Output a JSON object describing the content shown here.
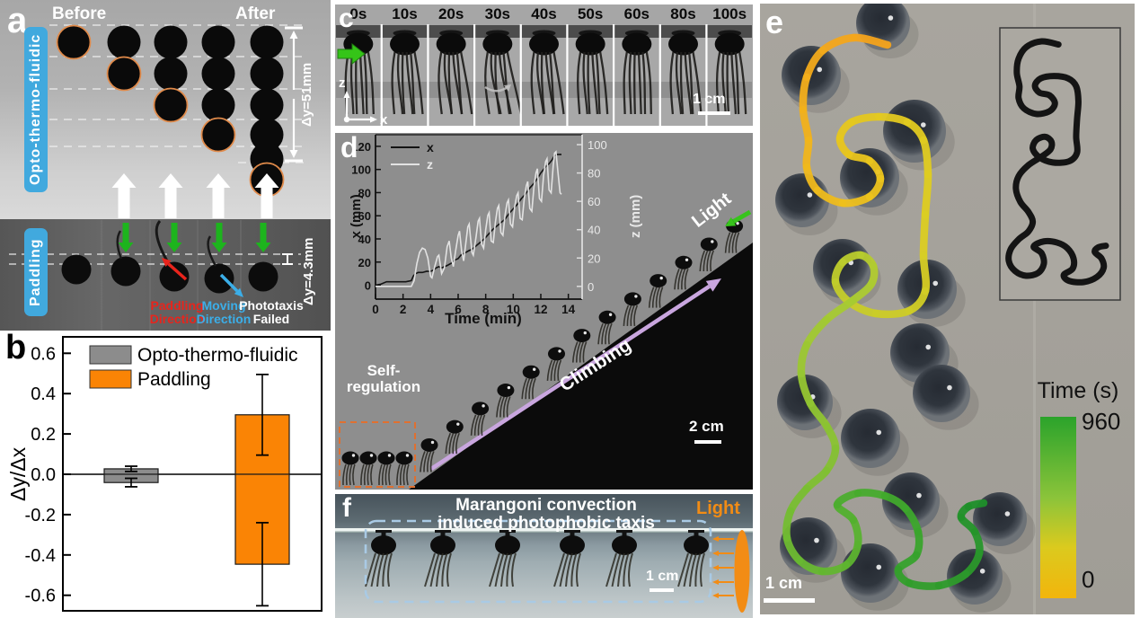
{
  "panels": {
    "a": {
      "label": "a",
      "before": "Before",
      "after": "After",
      "group_top": "Opto-thermo-fluidic",
      "group_bottom": "Paddling",
      "delta_top": "Δy=51mm",
      "delta_bottom": "Δy=4.3mm",
      "paddling_dir_1": "Paddling",
      "paddling_dir_2": "Direction",
      "moving_dir_1": "Moving",
      "moving_dir_2": "Direction",
      "phototaxis_1": "Phototaxis",
      "phototaxis_2": "Failed",
      "accent_blue": "#41a9de",
      "arrow_green": "#1db41d",
      "arrow_red": "#e8241c",
      "arrow_cyan": "#3baee8",
      "circle_outline": "#e08a4a"
    },
    "b": {
      "label": "b"
    },
    "c": {
      "label": "c",
      "times": [
        "0s",
        "10s",
        "20s",
        "30s",
        "40s",
        "50s",
        "60s",
        "80s",
        "100s"
      ],
      "axis_z": "z",
      "axis_x": "x",
      "scale_label": "1 cm",
      "arrow_green": "#35c418"
    },
    "d": {
      "label": "d",
      "light_label": "Light",
      "climbing_label": "Climbing",
      "self_reg_1": "Self-",
      "self_reg_2": "regulation",
      "scale_label": "2 cm",
      "arrow_purple": "#c9a6df",
      "arrow_green": "#37c41c",
      "dash_orange": "#e07030"
    },
    "e": {
      "label": "e",
      "scale_label": "1 cm",
      "colorbar": {
        "title": "Time (s)",
        "max": "960",
        "min": "0",
        "stops": [
          [
            0,
            "#2ba32b"
          ],
          [
            0.45,
            "#8cc43a"
          ],
          [
            0.72,
            "#dbca1e"
          ],
          [
            1,
            "#f2b50c"
          ]
        ]
      },
      "balls": [
        [
          137,
          22,
          30
        ],
        [
          57,
          80,
          33
        ],
        [
          172,
          142,
          35
        ],
        [
          122,
          194,
          33
        ],
        [
          47,
          219,
          30
        ],
        [
          92,
          295,
          33
        ],
        [
          186,
          318,
          33
        ],
        [
          178,
          389,
          33
        ],
        [
          202,
          434,
          32
        ],
        [
          50,
          444,
          31
        ],
        [
          123,
          484,
          33
        ],
        [
          168,
          554,
          32
        ],
        [
          267,
          574,
          30
        ],
        [
          54,
          604,
          32
        ],
        [
          123,
          634,
          33
        ],
        [
          239,
          638,
          31
        ]
      ],
      "trajectory": {
        "points": [
          [
            142,
            46
          ],
          [
            104,
            38
          ],
          [
            70,
            52
          ],
          [
            52,
            82
          ],
          [
            48,
            118
          ],
          [
            54,
            152
          ],
          [
            52,
            182
          ],
          [
            64,
            208
          ],
          [
            92,
            222
          ],
          [
            122,
            215
          ],
          [
            134,
            195
          ],
          [
            122,
            175
          ],
          [
            99,
            168
          ],
          [
            89,
            150
          ],
          [
            102,
            132
          ],
          [
            132,
            126
          ],
          [
            164,
            132
          ],
          [
            182,
            152
          ],
          [
            187,
            190
          ],
          [
            184,
            235
          ],
          [
            182,
            280
          ],
          [
            184,
            320
          ],
          [
            166,
            342
          ],
          [
            129,
            345
          ],
          [
            99,
            332
          ],
          [
            84,
            310
          ],
          [
            92,
            288
          ],
          [
            112,
            280
          ],
          [
            126,
            292
          ],
          [
            124,
            312
          ],
          [
            104,
            330
          ],
          [
            74,
            352
          ],
          [
            52,
            380
          ],
          [
            46,
            412
          ],
          [
            56,
            445
          ],
          [
            74,
            470
          ],
          [
            84,
            495
          ],
          [
            74,
            520
          ],
          [
            52,
            540
          ],
          [
            34,
            565
          ],
          [
            30,
            595
          ],
          [
            44,
            620
          ],
          [
            69,
            632
          ],
          [
            96,
            625
          ],
          [
            109,
            602
          ],
          [
            104,
            575
          ],
          [
            86,
            558
          ],
          [
            109,
            545
          ],
          [
            139,
            548
          ],
          [
            162,
            562
          ],
          [
            176,
            588
          ],
          [
            174,
            614
          ],
          [
            154,
            630
          ],
          [
            166,
            645
          ],
          [
            199,
            648
          ],
          [
            229,
            635
          ],
          [
            244,
            612
          ],
          [
            239,
            588
          ],
          [
            224,
            572
          ],
          [
            232,
            560
          ],
          [
            249,
            556
          ]
        ],
        "color_stops": [
          [
            0,
            "#f4a31b"
          ],
          [
            0.15,
            "#edc31c"
          ],
          [
            0.32,
            "#dccd22"
          ],
          [
            0.5,
            "#aacb32"
          ],
          [
            0.66,
            "#74bd32"
          ],
          [
            0.82,
            "#3fa82c"
          ],
          [
            1,
            "#1f8f2a"
          ]
        ]
      }
    },
    "f": {
      "label": "f",
      "title_1": "Marangoni convection",
      "title_2": "induced photophobic taxis",
      "light_label": "Light",
      "scale_label": "1 cm",
      "light_orange": "#f28c15",
      "dash_blue": "#a9cae5"
    }
  },
  "chart_data": [
    {
      "type": "bar",
      "ylabel": "Δy/Δx",
      "ylim": [
        -0.69,
        0.68
      ],
      "yticks": [
        "0.6",
        "0.4",
        "0.2",
        "0.0",
        "-0.2",
        "-0.4",
        "-0.6"
      ],
      "ytick_values": [
        0.6,
        0.4,
        0.2,
        0.0,
        -0.2,
        -0.4,
        -0.6
      ],
      "series": [
        {
          "name": "Opto-thermo-fluidic",
          "color": "#8c8c8c",
          "bars": [
            {
              "value": 0.027,
              "err": 0.013
            },
            {
              "value": -0.041,
              "err": 0.021
            }
          ]
        },
        {
          "name": "Paddling",
          "color": "#fa8405",
          "bars": [
            {
              "value": 0.295,
              "err": 0.2
            },
            {
              "value": -0.446,
              "err": 0.206
            }
          ]
        }
      ]
    },
    {
      "type": "line",
      "xlabel": "Time (min)",
      "ylabel_left": "x (mm)",
      "ylabel_right": "z (mm)",
      "xlim": [
        0,
        15
      ],
      "ylim_left": [
        -12,
        130
      ],
      "ylim_right": [
        -9,
        107
      ],
      "xticks": [
        0,
        2,
        4,
        6,
        8,
        10,
        12,
        14
      ],
      "yticks_left": [
        0,
        20,
        40,
        60,
        80,
        100,
        120
      ],
      "yticks_right": [
        0,
        20,
        40,
        60,
        80,
        100
      ],
      "series": [
        {
          "name": "x",
          "axis": "left",
          "color": "#141414",
          "points": [
            [
              0,
              0
            ],
            [
              0.4,
              1
            ],
            [
              0.8,
              3
            ],
            [
              1.5,
              3
            ],
            [
              2.2,
              3
            ],
            [
              2.6,
              4
            ],
            [
              2.75,
              8
            ],
            [
              2.9,
              10
            ],
            [
              3.1,
              11
            ],
            [
              3.4,
              11
            ],
            [
              3.7,
              12
            ],
            [
              4.0,
              12
            ],
            [
              4.2,
              13
            ],
            [
              4.4,
              15
            ],
            [
              4.6,
              16
            ],
            [
              4.8,
              15
            ],
            [
              5.0,
              16
            ],
            [
              5.2,
              17
            ],
            [
              5.5,
              19
            ],
            [
              5.8,
              22
            ],
            [
              6.0,
              23
            ],
            [
              6.2,
              26
            ],
            [
              6.5,
              28
            ],
            [
              6.8,
              30
            ],
            [
              7.0,
              31
            ],
            [
              7.3,
              34
            ],
            [
              7.6,
              37
            ],
            [
              7.9,
              40
            ],
            [
              8.2,
              44
            ],
            [
              8.5,
              48
            ],
            [
              8.8,
              51
            ],
            [
              9.1,
              54
            ],
            [
              9.4,
              57
            ],
            [
              9.7,
              62
            ],
            [
              10.0,
              66
            ],
            [
              10.3,
              70
            ],
            [
              10.6,
              75
            ],
            [
              10.9,
              79
            ],
            [
              11.2,
              84
            ],
            [
              11.5,
              88
            ],
            [
              11.8,
              93
            ],
            [
              12.0,
              97
            ],
            [
              12.2,
              100
            ],
            [
              12.4,
              103
            ],
            [
              12.6,
              105
            ],
            [
              12.8,
              108
            ],
            [
              13.0,
              112
            ],
            [
              13.2,
              113
            ],
            [
              13.5,
              113
            ]
          ]
        },
        {
          "name": "z",
          "axis": "right",
          "color": "#e2e2e2",
          "points": [
            [
              0,
              0
            ],
            [
              1.0,
              0
            ],
            [
              2.0,
              0
            ],
            [
              2.6,
              0
            ],
            [
              2.8,
              4
            ],
            [
              3.0,
              16
            ],
            [
              3.2,
              24
            ],
            [
              3.4,
              27
            ],
            [
              3.6,
              26
            ],
            [
              3.8,
              20
            ],
            [
              4.0,
              7
            ],
            [
              4.1,
              6
            ],
            [
              4.3,
              14
            ],
            [
              4.5,
              21
            ],
            [
              4.6,
              22
            ],
            [
              4.8,
              9
            ],
            [
              5.0,
              13
            ],
            [
              5.2,
              28
            ],
            [
              5.35,
              32
            ],
            [
              5.5,
              20
            ],
            [
              5.65,
              14
            ],
            [
              5.8,
              24
            ],
            [
              6.0,
              36
            ],
            [
              6.1,
              39
            ],
            [
              6.25,
              25
            ],
            [
              6.4,
              18
            ],
            [
              6.55,
              30
            ],
            [
              6.7,
              42
            ],
            [
              6.8,
              44
            ],
            [
              7.0,
              24
            ],
            [
              7.1,
              22
            ],
            [
              7.3,
              35
            ],
            [
              7.45,
              46
            ],
            [
              7.55,
              48
            ],
            [
              7.7,
              30
            ],
            [
              7.85,
              27
            ],
            [
              8.0,
              40
            ],
            [
              8.15,
              50
            ],
            [
              8.25,
              52
            ],
            [
              8.4,
              32
            ],
            [
              8.55,
              31
            ],
            [
              8.7,
              45
            ],
            [
              8.85,
              55
            ],
            [
              8.95,
              57
            ],
            [
              9.1,
              38
            ],
            [
              9.25,
              36
            ],
            [
              9.4,
              50
            ],
            [
              9.55,
              59
            ],
            [
              9.65,
              61
            ],
            [
              9.8,
              44
            ],
            [
              9.95,
              42
            ],
            [
              10.1,
              56
            ],
            [
              10.25,
              64
            ],
            [
              10.35,
              66
            ],
            [
              10.5,
              48
            ],
            [
              10.65,
              47
            ],
            [
              10.8,
              62
            ],
            [
              10.95,
              71
            ],
            [
              11.05,
              74
            ],
            [
              11.2,
              55
            ],
            [
              11.35,
              53
            ],
            [
              11.5,
              70
            ],
            [
              11.65,
              80
            ],
            [
              11.75,
              83
            ],
            [
              11.9,
              62
            ],
            [
              12.05,
              60
            ],
            [
              12.2,
              78
            ],
            [
              12.35,
              88
            ],
            [
              12.45,
              90
            ],
            [
              12.6,
              68
            ],
            [
              12.75,
              66
            ],
            [
              12.9,
              85
            ],
            [
              13.0,
              94
            ],
            [
              13.1,
              95
            ],
            [
              13.25,
              80
            ],
            [
              13.4,
              66
            ],
            [
              13.5,
              65
            ]
          ]
        }
      ]
    }
  ]
}
